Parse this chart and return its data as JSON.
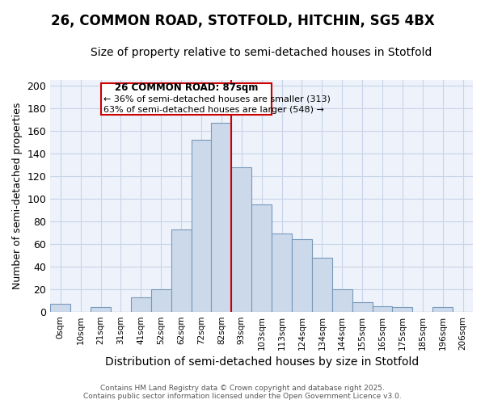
{
  "title1": "26, COMMON ROAD, STOTFOLD, HITCHIN, SG5 4BX",
  "title2": "Size of property relative to semi-detached houses in Stotfold",
  "xlabel": "Distribution of semi-detached houses by size in Stotfold",
  "ylabel": "Number of semi-detached properties",
  "bar_labels": [
    "0sqm",
    "10sqm",
    "21sqm",
    "31sqm",
    "41sqm",
    "52sqm",
    "62sqm",
    "72sqm",
    "82sqm",
    "93sqm",
    "103sqm",
    "113sqm",
    "124sqm",
    "134sqm",
    "144sqm",
    "155sqm",
    "165sqm",
    "175sqm",
    "185sqm",
    "196sqm",
    "206sqm"
  ],
  "bar_values": [
    7,
    0,
    4,
    0,
    13,
    20,
    73,
    152,
    167,
    128,
    95,
    69,
    64,
    48,
    20,
    8,
    5,
    4,
    0,
    4,
    0
  ],
  "bar_color": "#ccd9ea",
  "bar_edge_color": "#7799bb",
  "property_label": "26 COMMON ROAD: 87sqm",
  "annotation_smaller": "← 36% of semi-detached houses are smaller (313)",
  "annotation_larger": "63% of semi-detached houses are larger (548) →",
  "vline_color": "#cc0000",
  "box_color": "#ffffff",
  "box_edge_color": "#cc0000",
  "ylim": [
    0,
    205
  ],
  "yticks": [
    0,
    20,
    40,
    60,
    80,
    100,
    120,
    140,
    160,
    180,
    200
  ],
  "grid_color": "#c8d4e8",
  "bg_color": "#ffffff",
  "plot_bg_color": "#eef2fa",
  "footer_text": "Contains HM Land Registry data © Crown copyright and database right 2025.\nContains public sector information licensed under the Open Government Licence v3.0.",
  "title1_fontsize": 12,
  "title2_fontsize": 10,
  "xlabel_fontsize": 10,
  "ylabel_fontsize": 9
}
